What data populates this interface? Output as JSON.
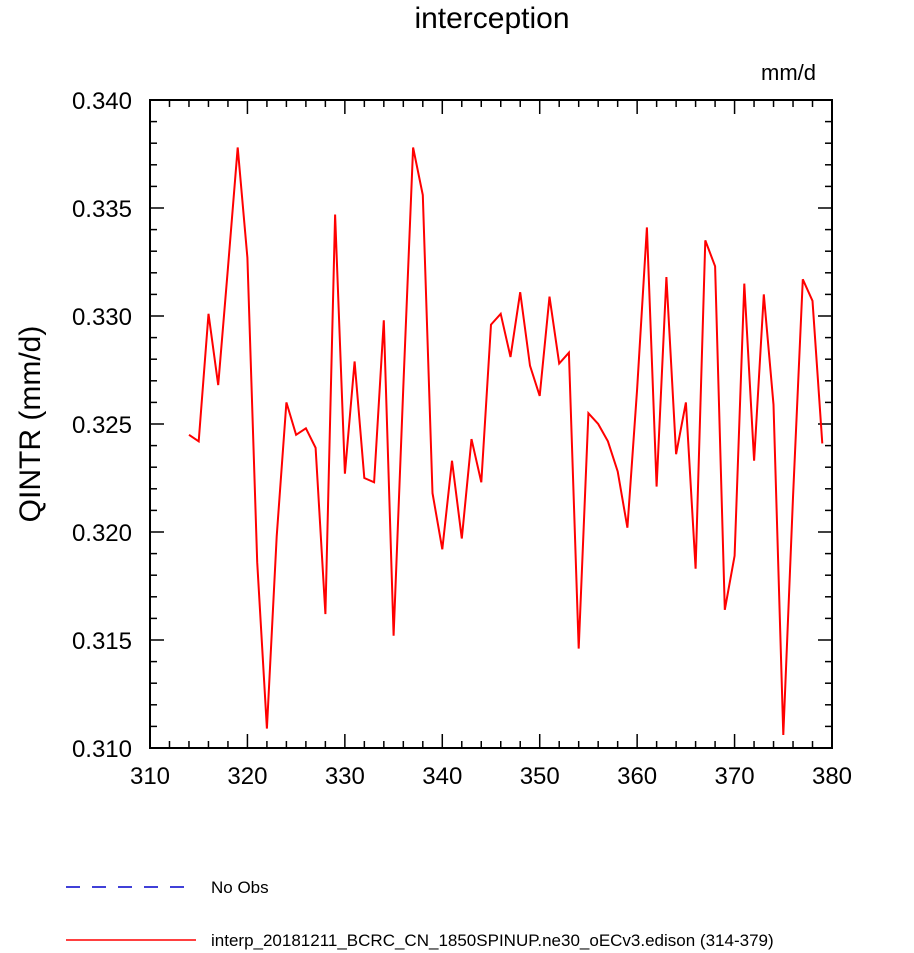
{
  "chart_data": {
    "type": "line",
    "title": "interception",
    "units_label": "mm/d",
    "ylabel": "QINTR  (mm/d)",
    "xlabel": "",
    "xlim": [
      310,
      380
    ],
    "ylim": [
      0.31,
      0.34
    ],
    "x_ticks": [
      310,
      320,
      330,
      340,
      350,
      360,
      370,
      380
    ],
    "x_tick_labels": [
      "310",
      "320",
      "330",
      "340",
      "350",
      "360",
      "370",
      "380"
    ],
    "y_ticks": [
      0.31,
      0.315,
      0.32,
      0.325,
      0.33,
      0.335,
      0.34
    ],
    "y_tick_labels": [
      "0.310",
      "0.315",
      "0.320",
      "0.325",
      "0.330",
      "0.335",
      "0.340"
    ],
    "grid": false,
    "legend_position": "bottom-left",
    "series": [
      {
        "name": "No Obs",
        "color": "#0000cc",
        "style": "dashed",
        "values": []
      },
      {
        "name": "interp_20181211_BCRC_CN_1850SPINUP.ne30_oECv3.edison (314-379)",
        "color": "#ff0000",
        "style": "solid",
        "x": [
          314,
          315,
          316,
          317,
          318,
          319,
          320,
          321,
          322,
          323,
          324,
          325,
          326,
          327,
          328,
          329,
          330,
          331,
          332,
          333,
          334,
          335,
          336,
          337,
          338,
          339,
          340,
          341,
          342,
          343,
          344,
          345,
          346,
          347,
          348,
          349,
          350,
          351,
          352,
          353,
          354,
          355,
          356,
          357,
          358,
          359,
          360,
          361,
          362,
          363,
          364,
          365,
          366,
          367,
          368,
          369,
          370,
          371,
          372,
          373,
          374,
          375,
          376,
          377,
          378,
          379
        ],
        "values": [
          0.3245,
          0.3242,
          0.3301,
          0.3268,
          0.3322,
          0.3378,
          0.3327,
          0.3186,
          0.3109,
          0.3198,
          0.326,
          0.3245,
          0.3248,
          0.3239,
          0.3162,
          0.3347,
          0.3227,
          0.3279,
          0.3225,
          0.3223,
          0.3298,
          0.3152,
          0.3267,
          0.3378,
          0.3356,
          0.3218,
          0.3192,
          0.3233,
          0.3197,
          0.3243,
          0.3223,
          0.3296,
          0.3301,
          0.3281,
          0.3311,
          0.3277,
          0.3263,
          0.3309,
          0.3278,
          0.3283,
          0.3146,
          0.3255,
          0.325,
          0.3242,
          0.3228,
          0.3202,
          0.3266,
          0.3341,
          0.3221,
          0.3318,
          0.3236,
          0.326,
          0.3183,
          0.3335,
          0.3323,
          0.3164,
          0.3189,
          0.3315,
          0.3233,
          0.331,
          0.3259,
          0.3106,
          0.3216,
          0.3317,
          0.3307,
          0.3241
        ]
      }
    ]
  }
}
